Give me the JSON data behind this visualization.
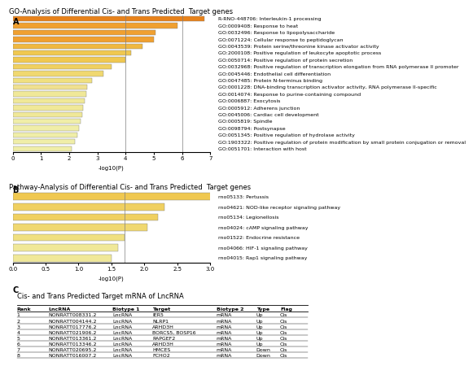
{
  "title_A": "GO-Analysis of Differential Cis- and Trans Predicted  Target genes",
  "title_B": "Pathway-Analysis of Differential Cis- and Trans Predicted  Target genes",
  "title_C": "Cis- and Trans Predicted Target mRNA of LncRNA",
  "go_labels": [
    "R-RNO-448706: Interleukin-1 processing",
    "GO:0009408: Response to heat",
    "GO:0032496: Response to lipopolysaccharide",
    "GO:0071224: Cellular response to peptidoglycan",
    "GO:0043539: Protein serine/threonine kinase activator activity",
    "GO:2000108: Positive regulation of leukocyte apoptotic process",
    "GO:0050714: Positive regulation of protein secretion",
    "GO:0032968: Positive regulation of transcription elongation from RNA polymerase II promoter",
    "GO:0045446: Endothelial cell differentiation",
    "GO:0047485: Protein N-terminus binding",
    "GO:0001228: DNA-binding transcription activator activity, RNA polymerase II-specific",
    "GO:0014074: Response to purine-containing compound",
    "GO:0006887: Exocytosis",
    "GO:0005912: Adherens junction",
    "GO:0045006: Cardiac cell development",
    "GO:0005819: Spindle",
    "GO:0098794: Postsynapse",
    "GO:0051345: Positive regulation of hydrolase activity",
    "GO:1903322: Positive regulation of protein modification by small protein conjugation or removal",
    "GO:0051701: Interaction with host"
  ],
  "go_values": [
    6.8,
    5.85,
    5.05,
    5.0,
    4.6,
    4.2,
    4.0,
    3.5,
    3.2,
    2.8,
    2.65,
    2.6,
    2.55,
    2.5,
    2.45,
    2.4,
    2.35,
    2.3,
    2.2,
    2.1
  ],
  "go_colors": [
    "#E8821A",
    "#F0A030",
    "#F0A030",
    "#F0A030",
    "#F0B840",
    "#F0C850",
    "#F0C850",
    "#F0D060",
    "#F0D870",
    "#F0E080",
    "#F0E090",
    "#F0E898",
    "#F0E898",
    "#F0E898",
    "#F0E898",
    "#F0EEA8",
    "#F0EEA8",
    "#F0EEA8",
    "#F0EEA8",
    "#F0EEA8"
  ],
  "go_vline1": 4.0,
  "go_vline2": 6.0,
  "go_xlim": [
    0,
    7
  ],
  "go_xticks": [
    0,
    1,
    2,
    3,
    4,
    5,
    6,
    7
  ],
  "go_xlabel": "-log10(P)",
  "kegg_labels": [
    "rno05133: Pertussis",
    "rno04621: NOD-like receptor signaling pathway",
    "rno05134: Legionellosis",
    "rno04024: cAMP signaling pathway",
    "rno01522: Endocrine resistance",
    "rno04066: HIF-1 signaling pathway",
    "rno04015: Rap1 signaling pathway"
  ],
  "kegg_values": [
    3.05,
    2.3,
    2.2,
    2.05,
    1.7,
    1.6,
    1.5
  ],
  "kegg_colors": [
    "#F0C850",
    "#F0D060",
    "#F0D060",
    "#F0D870",
    "#F0E080",
    "#F0E898",
    "#F0E898"
  ],
  "kegg_vline": 1.7,
  "kegg_xlim": [
    0.0,
    3.0
  ],
  "kegg_xticks": [
    0.0,
    0.5,
    1.0,
    1.5,
    2.0,
    2.5,
    3.0
  ],
  "kegg_xlabel": "-log10(P)",
  "table_columns": [
    "Rank",
    "LncRNA",
    "Biotype 1",
    "Target",
    "Biotype 2",
    "Type",
    "Flag"
  ],
  "table_data": [
    [
      "1",
      "NONRATT008331.2",
      "LncRNA",
      "IER5",
      "mRNA",
      "Up",
      "Cis"
    ],
    [
      "2",
      "NONRATT004144.2",
      "LncRNA",
      "NLRP1",
      "mRNA",
      "Up",
      "Cis"
    ],
    [
      "3",
      "NONRATT017776.2",
      "LncRNA",
      "ARHD3H",
      "mRNA",
      "Up",
      "Cis"
    ],
    [
      "4",
      "NONRATT021906.2",
      "LncRNA",
      "BORCS5, BOSP16",
      "mRNA",
      "Up",
      "Cis"
    ],
    [
      "5",
      "NONRATT013361.2",
      "LncRNA",
      "RAPGEF2",
      "mRNA",
      "Up",
      "Cis"
    ],
    [
      "6",
      "NONRATT013346.2",
      "LncRNA",
      "ARHD3H",
      "mRNA",
      "Up",
      "Cis"
    ],
    [
      "7",
      "NONRATT020695.2",
      "LncRNA",
      "HMCES",
      "mRNA",
      "Down",
      "Cis"
    ],
    [
      "8",
      "NONRATT016007.2",
      "LncRNA",
      "FCHO2",
      "mRNA",
      "Down",
      "Cis"
    ]
  ],
  "panel_label_fontsize": 7,
  "title_fontsize": 6,
  "bar_label_fontsize": 4.5,
  "axis_fontsize": 5,
  "table_fontsize": 4.5
}
